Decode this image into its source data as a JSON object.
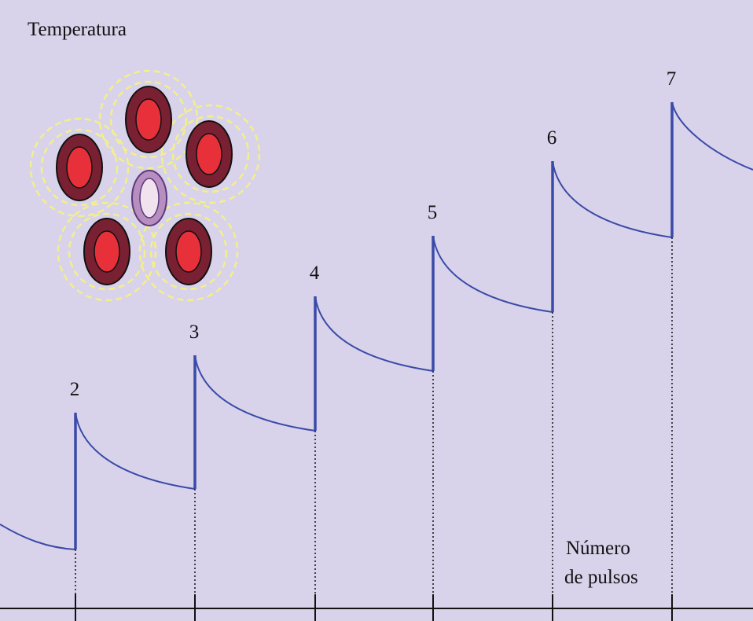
{
  "y_axis_label": "Temperatura",
  "x_axis_label": [
    "Número",
    "de pulsos"
  ],
  "pulses": [
    2,
    3,
    4,
    5,
    6,
    7
  ]
}
